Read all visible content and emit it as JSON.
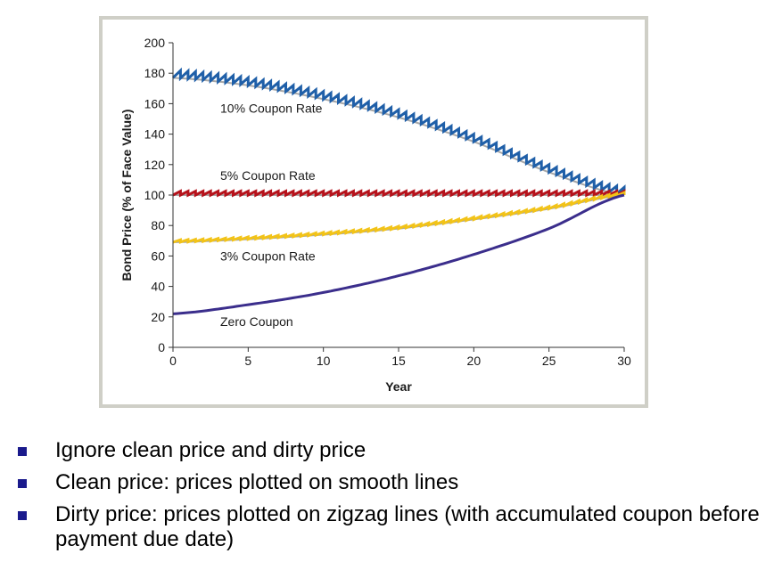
{
  "chart_data": {
    "type": "line",
    "xlabel": "Year",
    "ylabel": "Bond Price (% of Face Value)",
    "xlim": [
      0,
      30
    ],
    "ylim": [
      0,
      200
    ],
    "x_ticks": [
      "0",
      "5",
      "10",
      "15",
      "20",
      "25",
      "30"
    ],
    "y_ticks": [
      "0",
      "20",
      "40",
      "60",
      "80",
      "100",
      "120",
      "140",
      "160",
      "180",
      "200"
    ],
    "grid": false,
    "series": [
      {
        "name": "10% Coupon Rate",
        "color": "#1f5fa8",
        "clean": {
          "x": [
            0,
            5,
            10,
            15,
            20,
            25,
            30
          ],
          "y": [
            177,
            172,
            163,
            151,
            135,
            115,
            100
          ]
        },
        "zigzag": true,
        "coupon_per_period": 5
      },
      {
        "name": "5% Coupon Rate",
        "color": "#b5121b",
        "clean": {
          "x": [
            0,
            30
          ],
          "y": [
            100,
            100
          ]
        },
        "zigzag": true,
        "coupon_per_period": 2.5
      },
      {
        "name": "3% Coupon Rate",
        "color": "#f2c318",
        "clean": {
          "x": [
            0,
            5,
            10,
            15,
            20,
            25,
            30
          ],
          "y": [
            69,
            71,
            74,
            78,
            84,
            91,
            100
          ]
        },
        "zigzag": true,
        "coupon_per_period": 1.5
      },
      {
        "name": "Zero Coupon",
        "color": "#3b2e8c",
        "clean": {
          "x": [
            0,
            5,
            10,
            15,
            20,
            25,
            30
          ],
          "y": [
            22,
            28,
            36,
            47,
            61,
            78,
            100
          ]
        },
        "zigzag": false
      }
    ]
  },
  "bullets": [
    "Ignore clean price and dirty price",
    "Clean price: prices plotted on smooth lines",
    "Dirty price: prices plotted on zigzag lines (with accumulated coupon before payment due date)"
  ]
}
